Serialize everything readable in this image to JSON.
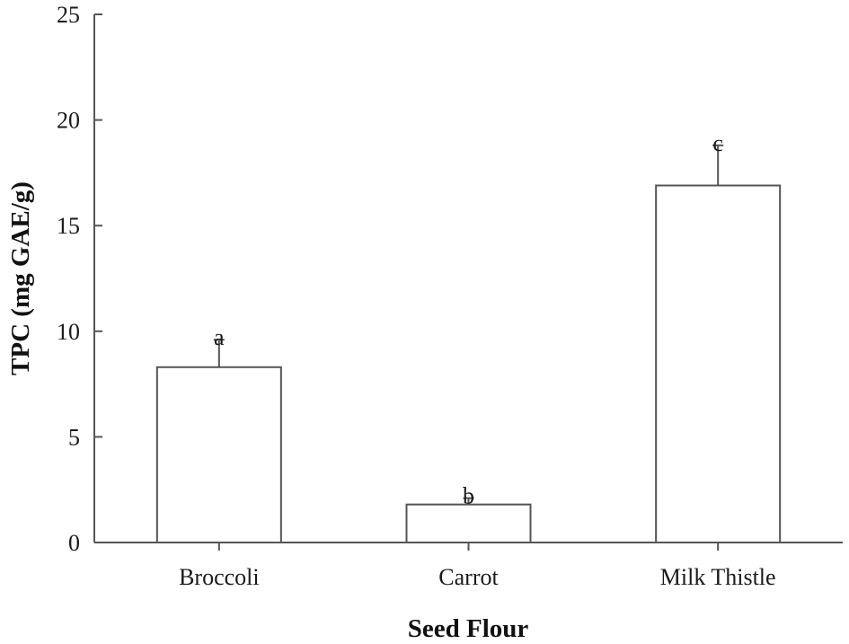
{
  "chart_data": {
    "type": "bar",
    "categories": [
      "Broccoli",
      "Carrot",
      "Milk Thistle"
    ],
    "values": [
      8.3,
      1.8,
      16.9
    ],
    "errors": [
      1.3,
      0.3,
      1.9
    ],
    "significance_labels": [
      "a",
      "b",
      "c"
    ],
    "xlabel": "Seed Flour",
    "ylabel": "TPC (mg GAE/g)",
    "ylim": [
      0,
      25
    ],
    "yticks": [
      0,
      5,
      10,
      15,
      20,
      25
    ],
    "grid": false,
    "legend": "none",
    "colors": {
      "bar_fill": "#ffffff",
      "bar_stroke": "#555555"
    }
  }
}
